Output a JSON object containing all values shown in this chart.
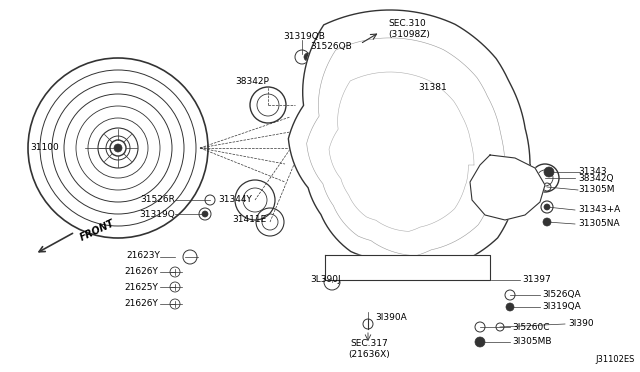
{
  "bg_color": "#ffffff",
  "diagram_code": "J31102ES",
  "lc": "#333333",
  "tc": "#000000",
  "figsize": [
    6.4,
    3.72
  ],
  "dpi": 100,
  "xlim": [
    0,
    640
  ],
  "ylim": [
    0,
    372
  ]
}
